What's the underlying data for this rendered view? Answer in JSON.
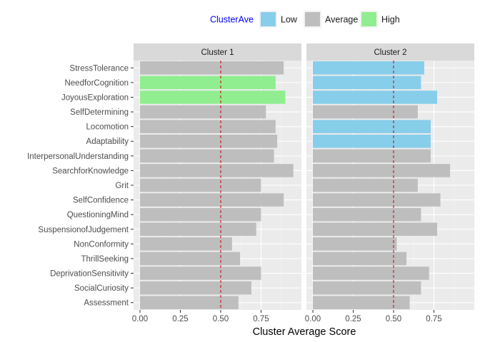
{
  "legend": {
    "title": "ClusterAve",
    "title_color": "#0000ff",
    "items": [
      {
        "label": "Low",
        "color": "#87ceeb"
      },
      {
        "label": "Average",
        "color": "#bebebe"
      },
      {
        "label": "High",
        "color": "#90ee90"
      }
    ]
  },
  "reference_line": {
    "x": 0.5,
    "color": "#cc0000",
    "style": "dashed"
  },
  "chart_data": {
    "type": "bar",
    "orientation": "horizontal",
    "xlabel": "Cluster Average Score",
    "ylabel": "",
    "xlim": [
      0,
      1
    ],
    "xticks": [
      "0.00",
      "0.25",
      "0.50",
      "0.75"
    ],
    "xtick_values": [
      0,
      0.25,
      0.5,
      0.75
    ],
    "grid": true,
    "legend_position": "top",
    "categories": [
      "StressTolerance",
      "NeedforCognition",
      "JoyousExploration",
      "SelfDetermining",
      "Locomotion",
      "Adaptability",
      "InterpersonalUnderstanding",
      "SearchforKnowledge",
      "Grit",
      "SelfConfidence",
      "QuestioningMind",
      "SuspensionofJudgement",
      "NonConformity",
      "ThrillSeeking",
      "DeprivationSensitivity",
      "SocialCuriosity",
      "Assessment"
    ],
    "panels": [
      {
        "title": "Cluster 1",
        "values": [
          0.89,
          0.84,
          0.9,
          0.78,
          0.84,
          0.85,
          0.83,
          0.95,
          0.75,
          0.89,
          0.75,
          0.72,
          0.57,
          0.62,
          0.75,
          0.69,
          0.61
        ],
        "groups": [
          "Average",
          "High",
          "High",
          "Average",
          "Average",
          "Average",
          "Average",
          "Average",
          "Average",
          "Average",
          "Average",
          "Average",
          "Average",
          "Average",
          "Average",
          "Average",
          "Average"
        ]
      },
      {
        "title": "Cluster 2",
        "values": [
          0.69,
          0.67,
          0.77,
          0.65,
          0.73,
          0.73,
          0.73,
          0.85,
          0.65,
          0.79,
          0.67,
          0.77,
          0.52,
          0.58,
          0.72,
          0.67,
          0.6
        ],
        "groups": [
          "Low",
          "Low",
          "Low",
          "Average",
          "Low",
          "Low",
          "Average",
          "Average",
          "Average",
          "Average",
          "Average",
          "Average",
          "Average",
          "Average",
          "Average",
          "Average",
          "Average"
        ]
      }
    ]
  }
}
